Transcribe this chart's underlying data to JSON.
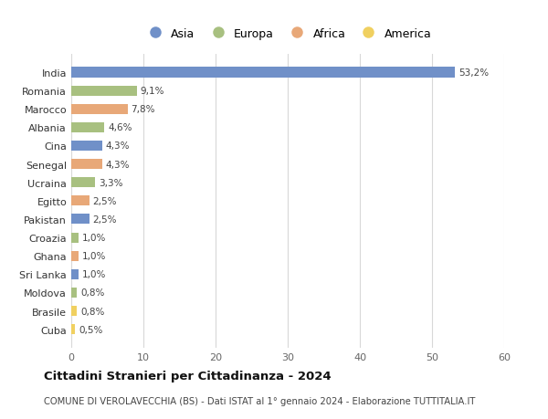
{
  "categories": [
    "India",
    "Romania",
    "Marocco",
    "Albania",
    "Cina",
    "Senegal",
    "Ucraina",
    "Egitto",
    "Pakistan",
    "Croazia",
    "Ghana",
    "Sri Lanka",
    "Moldova",
    "Brasile",
    "Cuba"
  ],
  "values": [
    53.2,
    9.1,
    7.8,
    4.6,
    4.3,
    4.3,
    3.3,
    2.5,
    2.5,
    1.0,
    1.0,
    1.0,
    0.8,
    0.8,
    0.5
  ],
  "labels": [
    "53,2%",
    "9,1%",
    "7,8%",
    "4,6%",
    "4,3%",
    "4,3%",
    "3,3%",
    "2,5%",
    "2,5%",
    "1,0%",
    "1,0%",
    "1,0%",
    "0,8%",
    "0,8%",
    "0,5%"
  ],
  "continents": [
    "Asia",
    "Europa",
    "Africa",
    "Europa",
    "Asia",
    "Africa",
    "Europa",
    "Africa",
    "Asia",
    "Europa",
    "Africa",
    "Asia",
    "Europa",
    "America",
    "America"
  ],
  "continent_colors": {
    "Asia": "#7090c8",
    "Europa": "#a8c080",
    "Africa": "#e8a878",
    "America": "#f0d060"
  },
  "legend_order": [
    "Asia",
    "Europa",
    "Africa",
    "America"
  ],
  "title": "Cittadini Stranieri per Cittadinanza - 2024",
  "subtitle": "COMUNE DI VEROLAVECCHIA (BS) - Dati ISTAT al 1° gennaio 2024 - Elaborazione TUTTITALIA.IT",
  "xlim": [
    0,
    60
  ],
  "xticks": [
    0,
    10,
    20,
    30,
    40,
    50,
    60
  ],
  "background_color": "#ffffff",
  "grid_color": "#d8d8d8",
  "bar_height": 0.55
}
